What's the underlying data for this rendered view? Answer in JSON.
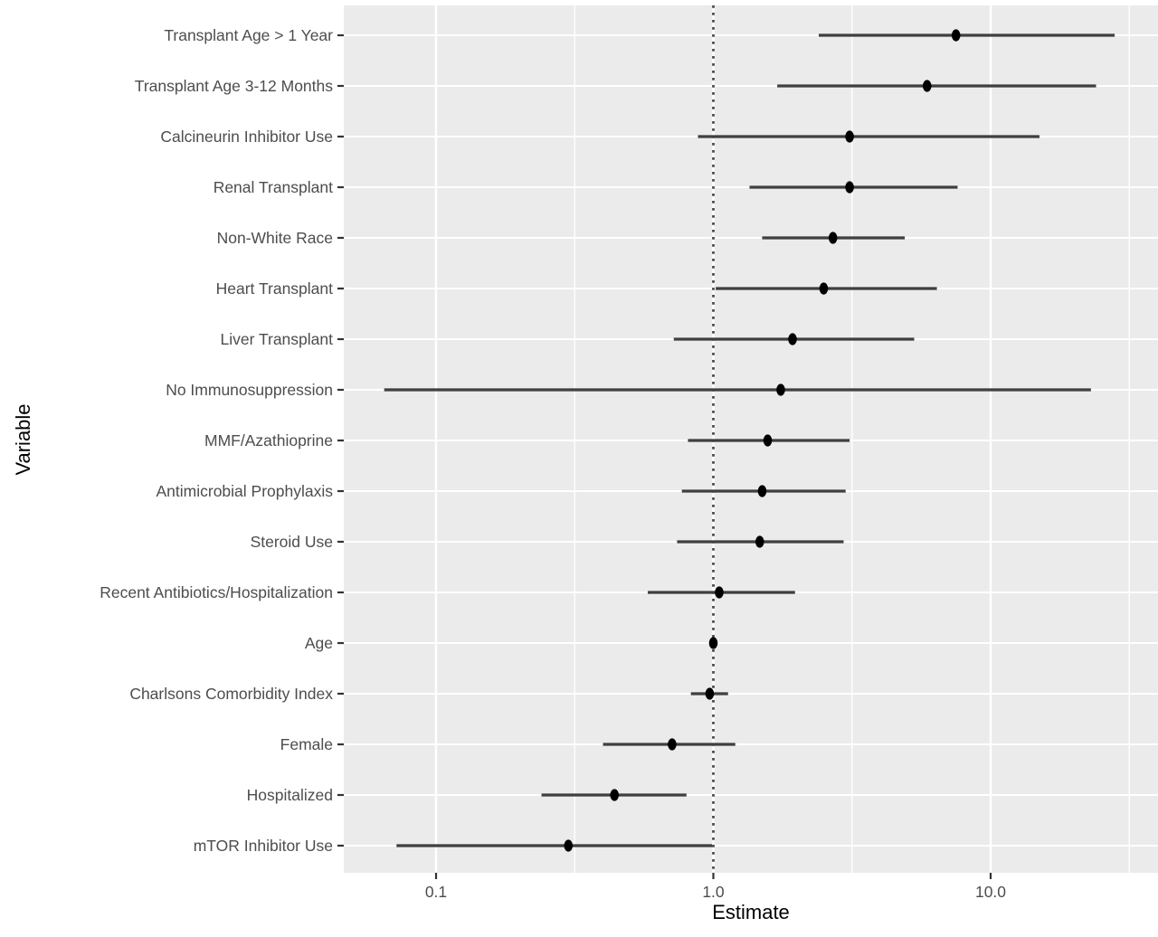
{
  "chart_data": {
    "type": "scatter",
    "subtype": "forest-plot",
    "title": "",
    "xlabel": "Estimate",
    "ylabel": "Variable",
    "x_scale": "log10",
    "x_ticks": [
      0.1,
      1.0,
      10.0
    ],
    "x_tick_labels": [
      "0.1",
      "1.0",
      "10.0"
    ],
    "x_minor_gridlines": [
      0.3162,
      3.162,
      31.62
    ],
    "xlim": [
      0.047,
      40
    ],
    "reference_line": 1.0,
    "grid": true,
    "legend": "none",
    "panel_color": "#EBEBEB",
    "gridline_color": "#FFFFFF",
    "point_color": "#000000",
    "errorbar_color": "#3F3F3F",
    "reference_line_color": "#4D4D4D",
    "axis_text_color": "#4D4D4D",
    "tick_mark_color": "#333333",
    "rows": [
      {
        "label": "Transplant Age > 1 Year",
        "estimate": 7.5,
        "ci_low": 2.4,
        "ci_high": 28.0
      },
      {
        "label": "Transplant Age 3-12 Months",
        "estimate": 5.9,
        "ci_low": 1.7,
        "ci_high": 24.0
      },
      {
        "label": "Calcineurin Inhibitor Use",
        "estimate": 3.1,
        "ci_low": 0.88,
        "ci_high": 15.0
      },
      {
        "label": "Renal Transplant",
        "estimate": 3.1,
        "ci_low": 1.35,
        "ci_high": 7.6
      },
      {
        "label": "Non-White Race",
        "estimate": 2.7,
        "ci_low": 1.5,
        "ci_high": 4.9
      },
      {
        "label": "Heart Transplant",
        "estimate": 2.5,
        "ci_low": 1.02,
        "ci_high": 6.4
      },
      {
        "label": "Liver Transplant",
        "estimate": 1.93,
        "ci_low": 0.72,
        "ci_high": 5.3
      },
      {
        "label": "No Immunosuppression",
        "estimate": 1.75,
        "ci_low": 0.065,
        "ci_high": 23.0
      },
      {
        "label": "MMF/Azathioprine",
        "estimate": 1.57,
        "ci_low": 0.81,
        "ci_high": 3.1
      },
      {
        "label": "Antimicrobial Prophylaxis",
        "estimate": 1.5,
        "ci_low": 0.77,
        "ci_high": 3.0
      },
      {
        "label": "Steroid Use",
        "estimate": 1.47,
        "ci_low": 0.74,
        "ci_high": 2.95
      },
      {
        "label": "Recent Antibiotics/Hospitalization",
        "estimate": 1.05,
        "ci_low": 0.58,
        "ci_high": 1.97
      },
      {
        "label": "Age",
        "estimate": 1.0,
        "ci_low": 0.985,
        "ci_high": 1.015
      },
      {
        "label": "Charlsons Comorbidity Index",
        "estimate": 0.97,
        "ci_low": 0.83,
        "ci_high": 1.13
      },
      {
        "label": "Female",
        "estimate": 0.71,
        "ci_low": 0.4,
        "ci_high": 1.2
      },
      {
        "label": "Hospitalized",
        "estimate": 0.44,
        "ci_low": 0.24,
        "ci_high": 0.8
      },
      {
        "label": "mTOR Inhibitor Use",
        "estimate": 0.3,
        "ci_low": 0.072,
        "ci_high": 0.99
      }
    ]
  }
}
